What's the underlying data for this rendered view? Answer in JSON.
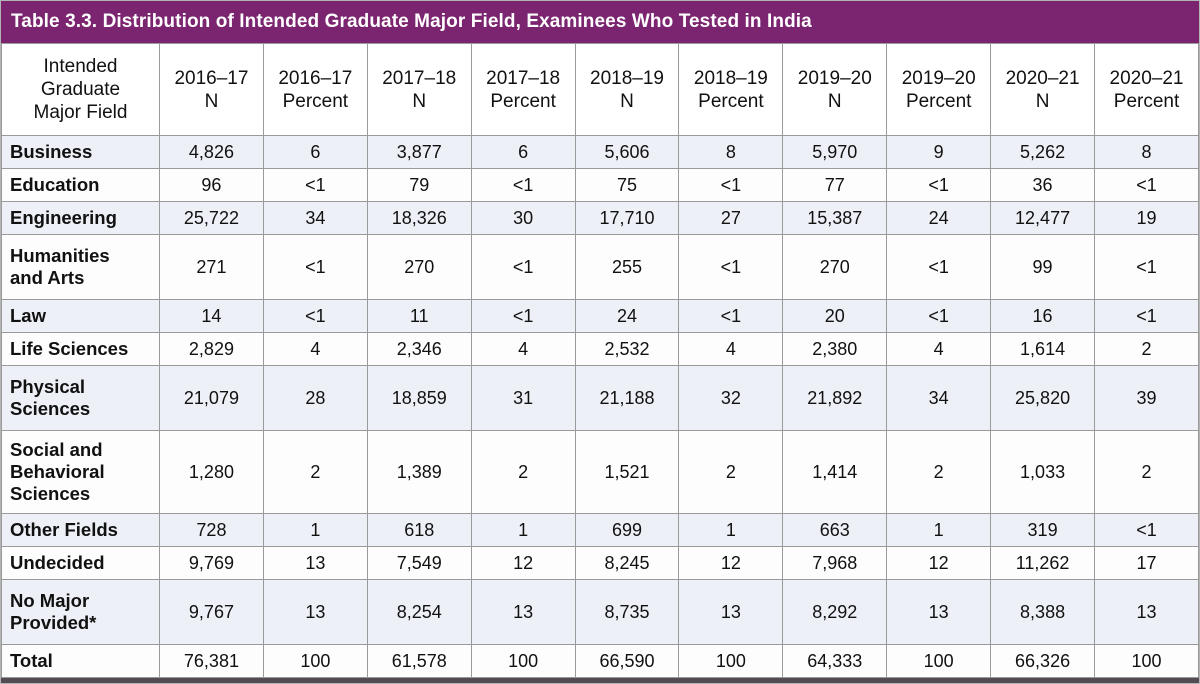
{
  "title": "Table 3.3. Distribution of Intended Graduate Major Field, Examinees Who Tested in India",
  "colors": {
    "title_bar": "#7B2470",
    "shaded_row": "#EDF0F7",
    "cell_border": "#9A9A9A",
    "bottom_rule": "#544A52"
  },
  "table": {
    "columns": [
      "Intended\nGraduate\nMajor Field",
      "2016–17\nN",
      "2016–17\nPercent",
      "2017–18\nN",
      "2017–18\nPercent",
      "2018–19\nN",
      "2018–19\nPercent",
      "2019–20\nN",
      "2019–20\nPercent",
      "2020–21\nN",
      "2020–21\nPercent"
    ],
    "rows": [
      {
        "label": "Business",
        "values": [
          "4,826",
          "6",
          "3,877",
          "6",
          "5,606",
          "8",
          "5,970",
          "9",
          "5,262",
          "8"
        ]
      },
      {
        "label": "Education",
        "values": [
          "96",
          "<1",
          "79",
          "<1",
          "75",
          "<1",
          "77",
          "<1",
          "36",
          "<1"
        ]
      },
      {
        "label": "Engineering",
        "values": [
          "25,722",
          "34",
          "18,326",
          "30",
          "17,710",
          "27",
          "15,387",
          "24",
          "12,477",
          "19"
        ]
      },
      {
        "label": "Humanities\nand Arts",
        "values": [
          "271",
          "<1",
          "270",
          "<1",
          "255",
          "<1",
          "270",
          "<1",
          "99",
          "<1"
        ]
      },
      {
        "label": "Law",
        "values": [
          "14",
          "<1",
          "11",
          "<1",
          "24",
          "<1",
          "20",
          "<1",
          "16",
          "<1"
        ]
      },
      {
        "label": "Life Sciences",
        "values": [
          "2,829",
          "4",
          "2,346",
          "4",
          "2,532",
          "4",
          "2,380",
          "4",
          "1,614",
          "2"
        ]
      },
      {
        "label": "Physical\nSciences",
        "values": [
          "21,079",
          "28",
          "18,859",
          "31",
          "21,188",
          "32",
          "21,892",
          "34",
          "25,820",
          "39"
        ]
      },
      {
        "label": "Social and\nBehavioral\nSciences",
        "values": [
          "1,280",
          "2",
          "1,389",
          "2",
          "1,521",
          "2",
          "1,414",
          "2",
          "1,033",
          "2"
        ]
      },
      {
        "label": "Other Fields",
        "values": [
          "728",
          "1",
          "618",
          "1",
          "699",
          "1",
          "663",
          "1",
          "319",
          "<1"
        ]
      },
      {
        "label": "Undecided",
        "values": [
          "9,769",
          "13",
          "7,549",
          "12",
          "8,245",
          "12",
          "7,968",
          "12",
          "11,262",
          "17"
        ]
      },
      {
        "label": "No Major\nProvided*",
        "values": [
          "9,767",
          "13",
          "8,254",
          "13",
          "8,735",
          "13",
          "8,292",
          "13",
          "8,388",
          "13"
        ]
      },
      {
        "label": "Total",
        "values": [
          "76,381",
          "100",
          "61,578",
          "100",
          "66,590",
          "100",
          "64,333",
          "100",
          "66,326",
          "100"
        ]
      }
    ]
  }
}
